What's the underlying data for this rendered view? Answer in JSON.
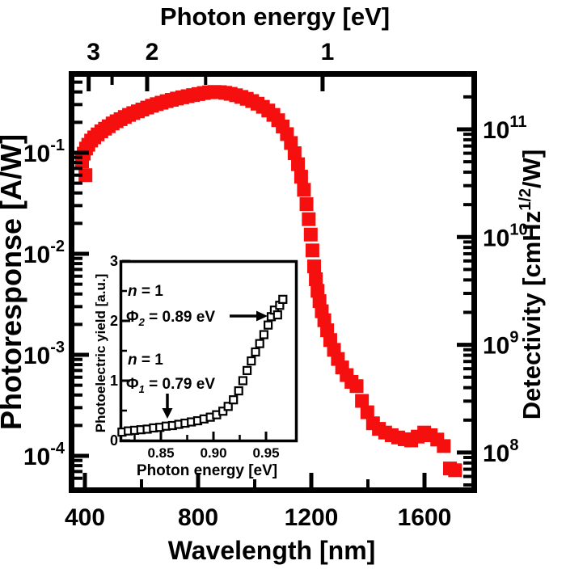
{
  "figure": {
    "background": "#ffffff",
    "axis_color": "#000000",
    "marker_color": "#f50f0f",
    "top_title": "Photon energy [eV]",
    "bottom_title": "Wavelength [nm]",
    "left_title": "Photoresponse [A/W]",
    "right_title_parts": [
      "Detectivity [cmHz",
      "1/2",
      "/W]"
    ]
  },
  "chart_data": [
    {
      "type": "scatter",
      "title": "",
      "xlabel": "Wavelength [nm]",
      "ylabel": "Photoresponse [A/W]",
      "x2label": "Photon energy [eV]",
      "y2label": "Detectivity [cmHz^1/2/W]",
      "xlim": [
        363,
        1780
      ],
      "ylim": [
        3e-05,
        0.6
      ],
      "y2lim": [
        62000000.0,
        190000000000.0
      ],
      "ylog": true,
      "y2log": true,
      "grid": false,
      "xticks": [
        400,
        800,
        1200,
        1600
      ],
      "xminor": [
        600,
        1000,
        1400
      ],
      "x2ticks_eV": [
        "3",
        "2",
        "1"
      ],
      "x2ticks_eV_values": [
        3,
        2,
        1
      ],
      "x2minor_eV_values": [
        2.5,
        1.5
      ],
      "ytick_base": "10",
      "ytick_exponents": [
        "-1",
        "-2",
        "-3",
        "-4"
      ],
      "y2tick_base": "10",
      "y2tick_exponents": [
        "11",
        "10",
        "9",
        "8"
      ],
      "marker": "filled-square",
      "series": [
        {
          "name": "photoresponse",
          "color": "#f50f0f",
          "x": [
            390,
            396,
            402,
            404,
            412,
            422,
            433,
            445,
            458,
            471,
            484,
            498,
            512,
            526,
            541,
            556,
            571,
            587,
            603,
            620,
            637,
            654,
            671,
            689,
            707,
            725,
            744,
            763,
            782,
            801,
            820,
            839,
            858,
            877,
            896,
            915,
            934,
            953,
            972,
            991,
            1010,
            1029,
            1048,
            1066,
            1083,
            1099,
            1114,
            1128,
            1141,
            1153,
            1164,
            1174,
            1183,
            1191,
            1198,
            1204,
            1210,
            1216,
            1222,
            1229,
            1237,
            1246,
            1256,
            1267,
            1280,
            1294,
            1309,
            1325,
            1342,
            1360,
            1379,
            1398,
            1418,
            1439,
            1461,
            1484,
            1507,
            1530,
            1553,
            1576,
            1599,
            1622,
            1645,
            1668,
            1690,
            1708
          ],
          "y": [
            0.082,
            0.098,
            0.06,
            0.11,
            0.12,
            0.132,
            0.142,
            0.152,
            0.163,
            0.173,
            0.183,
            0.195,
            0.205,
            0.215,
            0.226,
            0.237,
            0.247,
            0.257,
            0.268,
            0.28,
            0.292,
            0.303,
            0.313,
            0.324,
            0.334,
            0.344,
            0.354,
            0.363,
            0.372,
            0.381,
            0.39,
            0.397,
            0.4,
            0.398,
            0.392,
            0.383,
            0.371,
            0.357,
            0.342,
            0.325,
            0.306,
            0.285,
            0.262,
            0.237,
            0.21,
            0.182,
            0.153,
            0.125,
            0.099,
            0.077,
            0.058,
            0.043,
            0.031,
            0.022,
            0.0155,
            0.0108,
            0.0075,
            0.0056,
            0.0043,
            0.0034,
            0.0027,
            0.0022,
            0.00175,
            0.0014,
            0.00112,
            0.00091,
            0.00075,
            0.00063,
            0.00054,
            0.00049,
            0.00035,
            0.00027,
            0.00021,
            0.000185,
            0.00017,
            0.00016,
            0.000152,
            0.000146,
            0.000142,
            0.000155,
            0.00017,
            0.00016,
            0.000145,
            0.000125,
            7.5e-05,
            7.2e-05
          ]
        }
      ]
    },
    {
      "type": "scatter",
      "title": "inset",
      "xlabel": "Photon energy [eV]",
      "ylabel": "Photoelectric yield [a.u.]",
      "xlim": [
        0.812,
        0.979
      ],
      "ylim": [
        0,
        3
      ],
      "xtick_labels": [
        "0.85",
        "0.90",
        "0.95"
      ],
      "xticks": [
        0.85,
        0.9,
        0.95
      ],
      "xminor": [
        0.825,
        0.875,
        0.925
      ],
      "ytick_labels": [
        "0",
        "1",
        "2",
        "3"
      ],
      "yticks": [
        0,
        1,
        2,
        3
      ],
      "yminor": [
        0.5,
        1.5,
        2.5
      ],
      "marker": "open-square",
      "series": [
        {
          "name": "photoelectric-yield",
          "color": "#000000",
          "x": [
            0.813,
            0.819,
            0.825,
            0.831,
            0.837,
            0.843,
            0.849,
            0.855,
            0.861,
            0.867,
            0.873,
            0.879,
            0.885,
            0.891,
            0.897,
            0.903,
            0.909,
            0.914,
            0.919,
            0.924,
            0.928,
            0.932,
            0.936,
            0.94,
            0.944,
            0.948,
            0.952,
            0.955,
            0.958,
            0.961,
            0.963,
            0.966
          ],
          "y": [
            0.14,
            0.16,
            0.17,
            0.18,
            0.19,
            0.21,
            0.22,
            0.24,
            0.25,
            0.27,
            0.29,
            0.31,
            0.33,
            0.36,
            0.39,
            0.43,
            0.49,
            0.57,
            0.68,
            0.83,
            1.0,
            1.17,
            1.33,
            1.48,
            1.62,
            1.77,
            1.93,
            2.07,
            2.18,
            2.1,
            2.26,
            2.36
          ]
        }
      ],
      "annotations": [
        {
          "n_label_italic": "n",
          "n_label_rest": " = 1",
          "phi_symbol": "Φ",
          "phi_sub": "2",
          "phi_rest": " = 0.89 eV",
          "arrow": "right"
        },
        {
          "n_label_italic": "n",
          "n_label_rest": " = 1",
          "phi_symbol": "Φ",
          "phi_sub": "1",
          "phi_rest": " = 0.79 eV",
          "arrow": "down"
        }
      ]
    }
  ]
}
